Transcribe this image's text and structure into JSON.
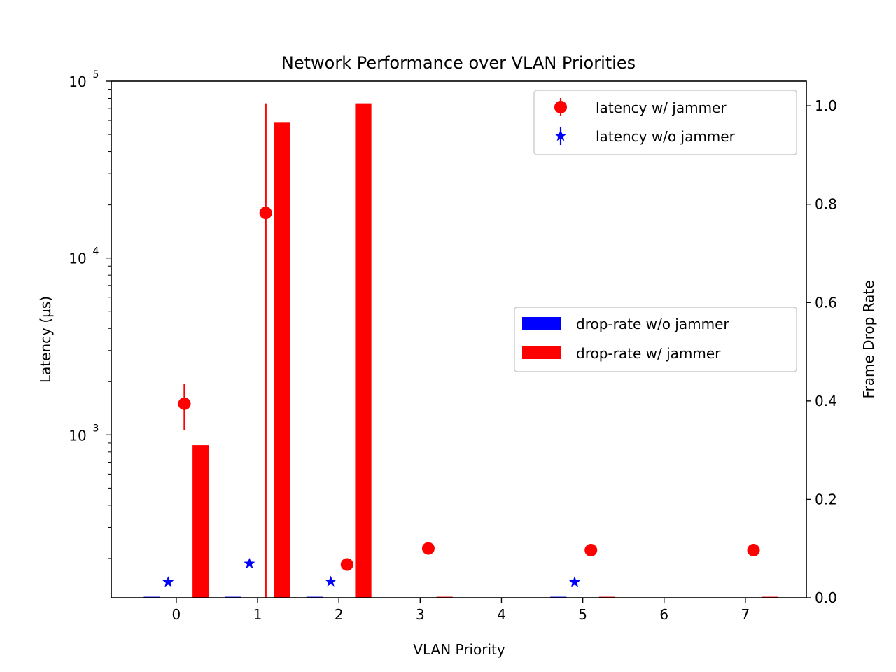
{
  "chart_data": {
    "type": "bar",
    "title": "Network Performance over VLAN Priorities",
    "xlabel": "VLAN Priority",
    "ylabel": "Latency (µs)",
    "ylabel_right": "Frame Drop Rate",
    "x_ticks": [
      "0",
      "1",
      "2",
      "3",
      "4",
      "5",
      "6",
      "7"
    ],
    "xlim": [
      -0.8,
      7.75
    ],
    "y_left": {
      "scale": "log",
      "lim": [
        120,
        100000
      ],
      "major_ticks": [
        {
          "value": 1000,
          "base": "10",
          "exp": "3"
        },
        {
          "value": 10000,
          "base": "10",
          "exp": "4"
        },
        {
          "value": 100000,
          "base": "10",
          "exp": "5"
        }
      ]
    },
    "y_right": {
      "lim": [
        0.0,
        1.05
      ],
      "ticks": [
        {
          "value": 0.0,
          "label": "0.0"
        },
        {
          "value": 0.2,
          "label": "0.2"
        },
        {
          "value": 0.4,
          "label": "0.4"
        },
        {
          "value": 0.6,
          "label": "0.6"
        },
        {
          "value": 0.8,
          "label": "0.8"
        },
        {
          "value": 1.0,
          "label": "1.0"
        }
      ]
    },
    "latency_series": [
      {
        "name": "latency w/ jammer",
        "color": "#ff0000",
        "marker": "circle",
        "points": [
          {
            "x": 0.1,
            "y": 1500,
            "err_low": 1060,
            "err_high": 1950
          },
          {
            "x": 1.1,
            "y": 18000,
            "err_low": 120,
            "err_high": 75000
          },
          {
            "x": 2.1,
            "y": 185
          },
          {
            "x": 3.1,
            "y": 228
          },
          {
            "x": 5.1,
            "y": 223
          },
          {
            "x": 7.1,
            "y": 223
          }
        ]
      },
      {
        "name": "latency w/o jammer",
        "color": "#0000ff",
        "marker": "star",
        "points": [
          {
            "x": -0.1,
            "y": 147
          },
          {
            "x": 0.9,
            "y": 187
          },
          {
            "x": 1.9,
            "y": 148
          },
          {
            "x": 4.9,
            "y": 147
          }
        ]
      }
    ],
    "drop_series": [
      {
        "name": "drop-rate w/o jammer",
        "color": "#0000ff",
        "bars": [
          {
            "x": -0.3,
            "value": 0.002
          },
          {
            "x": 0.7,
            "value": 0.002
          },
          {
            "x": 1.7,
            "value": 0.002
          },
          {
            "x": 4.7,
            "value": 0.002
          }
        ]
      },
      {
        "name": "drop-rate w/ jammer",
        "color": "#ff0000",
        "bars": [
          {
            "x": 0.3,
            "value": 0.31
          },
          {
            "x": 1.3,
            "value": 0.967
          },
          {
            "x": 2.3,
            "value": 1.005
          },
          {
            "x": 3.3,
            "value": 0.002
          },
          {
            "x": 5.3,
            "value": 0.002
          },
          {
            "x": 7.3,
            "value": 0.002
          }
        ]
      }
    ],
    "bar_width": 0.2,
    "legend_top": "top-right",
    "legend_middle": "center-right",
    "grid": false
  }
}
